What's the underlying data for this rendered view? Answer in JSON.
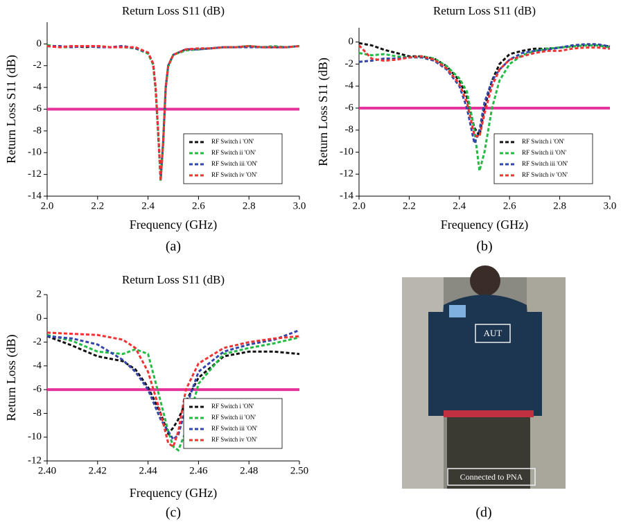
{
  "chart_data": [
    {
      "type": "line",
      "title": "Return Loss S11 (dB)",
      "x_label": "Frequency (GHz)",
      "y_label": "Return Loss S11 (dB)",
      "caption": "(a)",
      "xlim": [
        2.0,
        3.0
      ],
      "xticks": [
        {
          "value": 2.0,
          "label": "2.0"
        },
        2.2,
        2.4,
        2.6,
        2.8,
        {
          "value": 3.0,
          "label": "3.0"
        }
      ],
      "ylim": [
        -14,
        2
      ],
      "yticks": [
        -14,
        -12,
        -10,
        -8,
        -6,
        -4,
        -2,
        0
      ],
      "hline": {
        "value": -6,
        "color": "#e6339c"
      },
      "legend": "lower right",
      "x": [
        2.0,
        2.05,
        2.1,
        2.15,
        2.2,
        2.25,
        2.3,
        2.35,
        2.4,
        2.42,
        2.43,
        2.44,
        2.45,
        2.46,
        2.47,
        2.48,
        2.5,
        2.55,
        2.6,
        2.65,
        2.7,
        2.75,
        2.8,
        2.85,
        2.9,
        2.95,
        3.0
      ],
      "series": [
        {
          "name": "RF Switch i 'ON'",
          "color": "#111111",
          "values": [
            -0.2,
            -0.3,
            -0.2,
            -0.3,
            -0.2,
            -0.3,
            -0.2,
            -0.4,
            -0.8,
            -1.8,
            -4,
            -8,
            -12.5,
            -9,
            -4,
            -2,
            -1,
            -0.5,
            -0.5,
            -0.4,
            -0.3,
            -0.3,
            -0.2,
            -0.3,
            -0.3,
            -0.3,
            -0.2
          ]
        },
        {
          "name": "RF Switch ii 'ON'",
          "color": "#22bb44",
          "values": [
            -0.1,
            -0.3,
            -0.3,
            -0.2,
            -0.2,
            -0.3,
            -0.3,
            -0.4,
            -0.9,
            -1.9,
            -4.2,
            -8.3,
            -12.6,
            -9.2,
            -4.1,
            -2.1,
            -1,
            -0.6,
            -0.5,
            -0.4,
            -0.3,
            -0.3,
            -0.2,
            -0.3,
            -0.2,
            -0.3,
            -0.2
          ]
        },
        {
          "name": "RF Switch iii 'ON'",
          "color": "#3344aa",
          "values": [
            -0.2,
            -0.2,
            -0.3,
            -0.2,
            -0.3,
            -0.3,
            -0.2,
            -0.4,
            -0.8,
            -1.8,
            -4.1,
            -8.1,
            -12.4,
            -9.1,
            -4,
            -2,
            -1,
            -0.5,
            -0.5,
            -0.4,
            -0.3,
            -0.3,
            -0.3,
            -0.3,
            -0.3,
            -0.3,
            -0.2
          ]
        },
        {
          "name": "RF Switch iv 'ON'",
          "color": "#ee3333",
          "values": [
            -0.2,
            -0.3,
            -0.2,
            -0.2,
            -0.2,
            -0.3,
            -0.3,
            -0.3,
            -0.8,
            -1.8,
            -4,
            -8.2,
            -12.6,
            -9,
            -4,
            -2,
            -1,
            -0.5,
            -0.4,
            -0.4,
            -0.3,
            -0.3,
            -0.2,
            -0.3,
            -0.3,
            -0.3,
            -0.2
          ]
        }
      ]
    },
    {
      "type": "line",
      "title": "Return Loss S11 (dB)",
      "x_label": "Frequency (GHz)",
      "y_label": "Return Loss S11 (dB)",
      "caption": "(b)",
      "xlim": [
        2.0,
        3.0
      ],
      "xticks": [
        {
          "value": 2.0,
          "label": "2.0"
        },
        2.2,
        2.4,
        2.6,
        2.8,
        {
          "value": 3.0,
          "label": "3.0"
        }
      ],
      "ylim": [
        -14,
        1.3
      ],
      "yticks": [
        -14,
        -12,
        -10,
        -8,
        -6,
        -4,
        -2,
        0
      ],
      "hline": {
        "value": -6,
        "color": "#e6339c"
      },
      "legend": "lower right",
      "x": [
        2.0,
        2.05,
        2.1,
        2.15,
        2.2,
        2.25,
        2.3,
        2.35,
        2.4,
        2.43,
        2.46,
        2.48,
        2.5,
        2.53,
        2.56,
        2.6,
        2.65,
        2.7,
        2.75,
        2.8,
        2.85,
        2.9,
        2.95,
        3.0
      ],
      "series": [
        {
          "name": "RF Switch i 'ON'",
          "color": "#111111",
          "values": [
            -0.1,
            -0.3,
            -0.7,
            -1.0,
            -1.3,
            -1.3,
            -1.5,
            -2.2,
            -3.5,
            -5,
            -7.8,
            -8.5,
            -6,
            -3.5,
            -2,
            -1.1,
            -0.8,
            -0.6,
            -0.6,
            -0.5,
            -0.4,
            -0.3,
            -0.3,
            -0.4
          ]
        },
        {
          "name": "RF Switch ii 'ON'",
          "color": "#22bb44",
          "values": [
            -1.0,
            -1.2,
            -1.1,
            -1.3,
            -1.4,
            -1.3,
            -1.5,
            -2.2,
            -3.3,
            -4.5,
            -8,
            -11.7,
            -10,
            -6,
            -3.5,
            -2,
            -1.2,
            -0.8,
            -0.6,
            -0.5,
            -0.4,
            -0.3,
            -0.3,
            -0.5
          ]
        },
        {
          "name": "RF Switch iii 'ON'",
          "color": "#3344aa",
          "values": [
            -1.8,
            -1.7,
            -1.5,
            -1.5,
            -1.4,
            -1.4,
            -1.7,
            -2.5,
            -4,
            -6,
            -9.2,
            -8,
            -5.5,
            -3.5,
            -2.5,
            -1.6,
            -1,
            -0.8,
            -0.7,
            -0.5,
            -0.3,
            -0.2,
            -0.2,
            -0.4
          ]
        },
        {
          "name": "RF Switch iv 'ON'",
          "color": "#ee3333",
          "values": [
            -0.3,
            -1.5,
            -1.7,
            -1.6,
            -1.4,
            -1.3,
            -1.6,
            -2.4,
            -3.8,
            -5.5,
            -8.5,
            -8.6,
            -6.5,
            -4,
            -2.5,
            -1.6,
            -1.3,
            -1.0,
            -0.8,
            -0.8,
            -0.6,
            -0.5,
            -0.5,
            -0.6
          ]
        }
      ]
    },
    {
      "type": "line",
      "title": "Return Loss S11 (dB)",
      "x_label": "Frequency (GHz)",
      "y_label": "Return Loss (dB)",
      "caption": "(c)",
      "xlim": [
        2.4,
        2.5
      ],
      "xticks": [
        {
          "value": 2.4,
          "label": "2.40"
        },
        2.42,
        2.44,
        2.46,
        2.48,
        {
          "value": 2.5,
          "label": "2.50"
        }
      ],
      "ylim": [
        -12,
        2
      ],
      "yticks": [
        -12,
        -10,
        -8,
        -6,
        -4,
        -2,
        0,
        2
      ],
      "hline": {
        "value": -6,
        "color": "#e6339c"
      },
      "legend": "lower right",
      "x": [
        2.4,
        2.41,
        2.42,
        2.43,
        2.435,
        2.44,
        2.445,
        2.448,
        2.45,
        2.452,
        2.455,
        2.46,
        2.47,
        2.48,
        2.49,
        2.5
      ],
      "series": [
        {
          "name": "RF Switch i 'ON'",
          "color": "#111111",
          "values": [
            -1.5,
            -2.3,
            -3.2,
            -3.6,
            -4.3,
            -5.8,
            -8,
            -9.7,
            -9.2,
            -8.5,
            -7,
            -5,
            -3.2,
            -2.8,
            -2.8,
            -3.0
          ]
        },
        {
          "name": "RF Switch ii 'ON'",
          "color": "#22bb44",
          "values": [
            -1.4,
            -1.9,
            -2.8,
            -3.0,
            -2.6,
            -3.0,
            -7,
            -9.5,
            -10.8,
            -11.1,
            -9.5,
            -5.5,
            -3,
            -2.5,
            -2.1,
            -1.6
          ]
        },
        {
          "name": "RF Switch iii 'ON'",
          "color": "#3344aa",
          "values": [
            -1.5,
            -1.7,
            -2.2,
            -3.5,
            -4.5,
            -6,
            -8.5,
            -9.5,
            -10.2,
            -9.8,
            -7.5,
            -4.5,
            -2.8,
            -2.2,
            -1.8,
            -1.0
          ]
        },
        {
          "name": "RF Switch iv 'ON'",
          "color": "#ee3333",
          "values": [
            -1.2,
            -1.3,
            -1.4,
            -1.8,
            -2.5,
            -4.5,
            -8,
            -10.5,
            -10.8,
            -9.5,
            -6,
            -3.8,
            -2.5,
            -2.0,
            -1.7,
            -1.5
          ]
        }
      ]
    }
  ],
  "photo": {
    "caption": "(d)",
    "labels": [
      "AUT",
      "Connected to PNA"
    ]
  }
}
